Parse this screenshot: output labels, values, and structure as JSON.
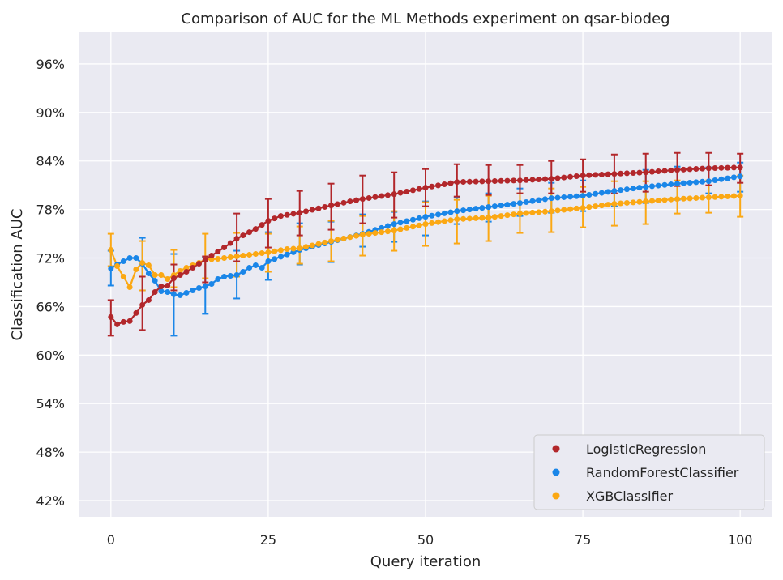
{
  "chart_data": {
    "type": "line",
    "title": "Comparison of AUC for the ML Methods experiment on qsar-biodeg",
    "xlabel": "Query iteration",
    "ylabel": "Classification AUC",
    "xlim": [
      -5,
      105
    ],
    "ylim": [
      0.4,
      0.999
    ],
    "x_ticks": [
      0,
      25,
      50,
      75,
      100
    ],
    "x_tick_labels": [
      "0",
      "25",
      "50",
      "75",
      "100"
    ],
    "y_ticks": [
      0.42,
      0.48,
      0.54,
      0.6,
      0.66,
      0.72,
      0.78,
      0.84,
      0.9,
      0.96
    ],
    "y_tick_labels": [
      "42%",
      "48%",
      "54%",
      "60%",
      "66%",
      "72%",
      "78%",
      "84%",
      "90%",
      "96%"
    ],
    "grid": true,
    "legend_position": "bottom-right",
    "series": [
      {
        "name": "LogisticRegression",
        "color": "#b2272b",
        "anchors_x": [
          0,
          1,
          2,
          3,
          4,
          5,
          6,
          7,
          8,
          9,
          10,
          12,
          15,
          18,
          20,
          23,
          25,
          27,
          30,
          35,
          38,
          40,
          45,
          50,
          55,
          60,
          65,
          70,
          75,
          80,
          85,
          90,
          95,
          100
        ],
        "anchors_y": [
          0.647,
          0.638,
          0.641,
          0.642,
          0.652,
          0.662,
          0.668,
          0.678,
          0.685,
          0.686,
          0.695,
          0.703,
          0.718,
          0.733,
          0.744,
          0.756,
          0.766,
          0.772,
          0.776,
          0.785,
          0.79,
          0.793,
          0.799,
          0.807,
          0.814,
          0.815,
          0.816,
          0.818,
          0.822,
          0.824,
          0.826,
          0.829,
          0.831,
          0.832
        ],
        "error_x": [
          0,
          5,
          10,
          15,
          20,
          25,
          30,
          35,
          40,
          45,
          50,
          55,
          60,
          65,
          70,
          75,
          80,
          85,
          90,
          95,
          100
        ],
        "error_low": [
          0.624,
          0.631,
          0.68,
          0.69,
          0.716,
          0.733,
          0.748,
          0.755,
          0.763,
          0.77,
          0.784,
          0.796,
          0.798,
          0.8,
          0.8,
          0.802,
          0.8,
          0.802,
          0.809,
          0.81,
          0.813
        ],
        "error_high": [
          0.668,
          0.697,
          0.712,
          0.722,
          0.775,
          0.793,
          0.803,
          0.812,
          0.822,
          0.826,
          0.83,
          0.836,
          0.835,
          0.835,
          0.84,
          0.842,
          0.848,
          0.849,
          0.85,
          0.85,
          0.849
        ]
      },
      {
        "name": "RandomForestClassifier",
        "color": "#1a86e8",
        "anchors_x": [
          0,
          1,
          2,
          3,
          4,
          5,
          6,
          7,
          8,
          9,
          10,
          11,
          12,
          13,
          14,
          15,
          16,
          17,
          18,
          19,
          20,
          21,
          22,
          23,
          24,
          25,
          30,
          35,
          40,
          45,
          50,
          55,
          60,
          65,
          70,
          75,
          80,
          85,
          90,
          95,
          100
        ],
        "anchors_y": [
          0.707,
          0.712,
          0.716,
          0.72,
          0.72,
          0.713,
          0.701,
          0.692,
          0.679,
          0.678,
          0.675,
          0.674,
          0.677,
          0.68,
          0.683,
          0.685,
          0.688,
          0.694,
          0.697,
          0.698,
          0.699,
          0.703,
          0.708,
          0.711,
          0.708,
          0.716,
          0.73,
          0.74,
          0.75,
          0.762,
          0.771,
          0.778,
          0.783,
          0.788,
          0.794,
          0.797,
          0.803,
          0.808,
          0.812,
          0.815,
          0.821
        ],
        "error_x": [
          0,
          5,
          10,
          15,
          20,
          25,
          30,
          35,
          40,
          45,
          50,
          55,
          60,
          65,
          70,
          75,
          80,
          85,
          90,
          95,
          100
        ],
        "error_low": [
          0.686,
          0.68,
          0.624,
          0.651,
          0.67,
          0.693,
          0.712,
          0.715,
          0.734,
          0.74,
          0.748,
          0.762,
          0.765,
          0.772,
          0.776,
          0.778,
          0.784,
          0.788,
          0.792,
          0.8,
          0.802
        ],
        "error_high": [
          0.729,
          0.745,
          0.725,
          0.721,
          0.729,
          0.752,
          0.763,
          0.765,
          0.774,
          0.777,
          0.79,
          0.795,
          0.8,
          0.806,
          0.813,
          0.816,
          0.824,
          0.829,
          0.833,
          0.832,
          0.838
        ]
      },
      {
        "name": "XGBClassifier",
        "color": "#fba814",
        "anchors_x": [
          0,
          1,
          2,
          3,
          4,
          5,
          6,
          7,
          8,
          9,
          10,
          11,
          12,
          13,
          14,
          15,
          17,
          20,
          25,
          28,
          30,
          35,
          40,
          45,
          50,
          55,
          60,
          65,
          70,
          75,
          80,
          85,
          90,
          95,
          100
        ],
        "anchors_y": [
          0.73,
          0.71,
          0.697,
          0.684,
          0.706,
          0.714,
          0.711,
          0.699,
          0.699,
          0.694,
          0.699,
          0.704,
          0.708,
          0.711,
          0.714,
          0.718,
          0.719,
          0.722,
          0.727,
          0.731,
          0.732,
          0.741,
          0.749,
          0.754,
          0.762,
          0.768,
          0.77,
          0.775,
          0.778,
          0.782,
          0.787,
          0.79,
          0.793,
          0.795,
          0.797
        ]
      }
    ],
    "xgb_error": {
      "error_x": [
        0,
        5,
        10,
        15,
        20,
        25,
        30,
        35,
        40,
        45,
        50,
        55,
        60,
        65,
        70,
        75,
        80,
        85,
        90,
        95,
        100
      ],
      "error_low": [
        0.71,
        0.68,
        0.684,
        0.695,
        0.697,
        0.703,
        0.713,
        0.716,
        0.723,
        0.729,
        0.735,
        0.738,
        0.741,
        0.751,
        0.752,
        0.758,
        0.76,
        0.762,
        0.775,
        0.776,
        0.771
      ],
      "error_high": [
        0.75,
        0.741,
        0.73,
        0.75,
        0.751,
        0.75,
        0.759,
        0.766,
        0.772,
        0.778,
        0.789,
        0.792,
        0.797,
        0.8,
        0.806,
        0.808,
        0.815,
        0.815,
        0.816,
        0.816,
        0.822
      ]
    }
  }
}
